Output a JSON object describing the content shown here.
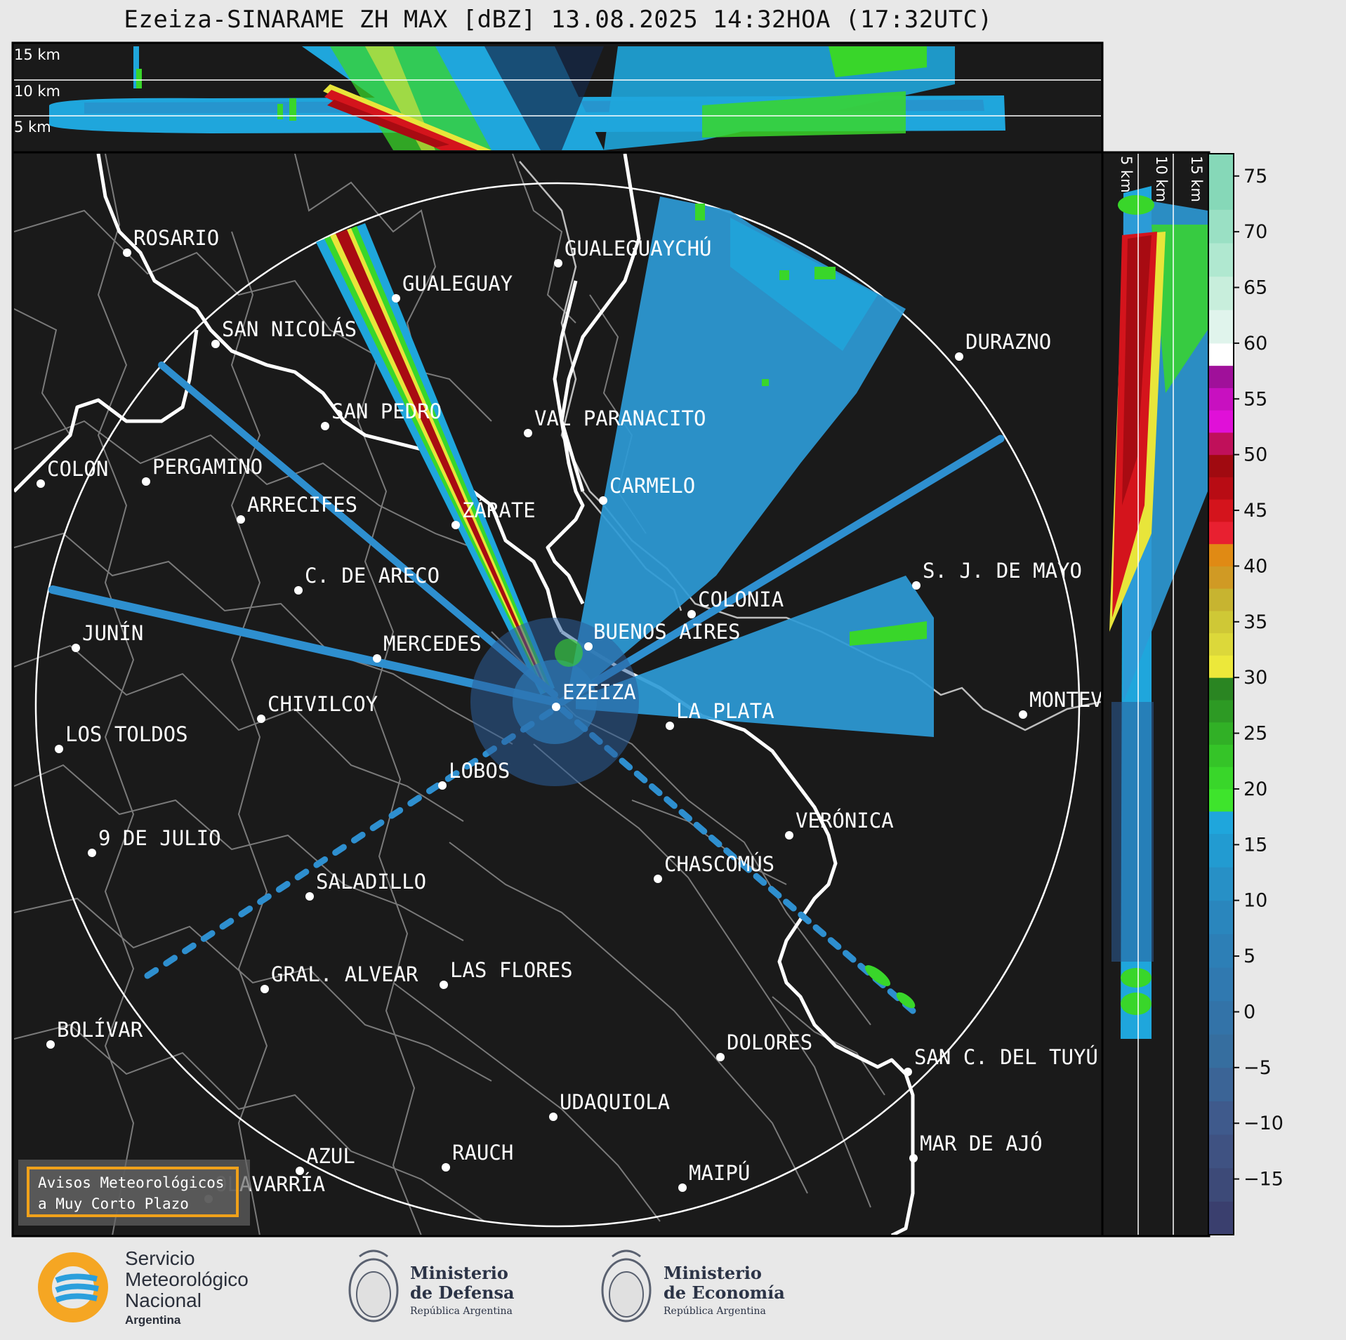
{
  "title": "Ezeiza-SINARAME ZH MAX [dBZ] 13.08.2025 14:32HOA (17:32UTC)",
  "top_panel": {
    "height_labels": [
      "15 km",
      "10 km",
      "5 km"
    ]
  },
  "side_panel": {
    "height_labels": [
      "5 km",
      "10 km",
      "15 km"
    ]
  },
  "colorbar": {
    "ticks": [
      "75",
      "70",
      "65",
      "60",
      "55",
      "50",
      "45",
      "40",
      "35",
      "30",
      "25",
      "20",
      "15",
      "10",
      "5",
      "0",
      "−5",
      "−10",
      "−15"
    ],
    "colors": {
      "cyan": "#1fa6dc",
      "blue": "#2e7bb8",
      "green": "#39d62a",
      "yellow": "#e8e53a",
      "orange": "#e07b12",
      "red": "#d4141c",
      "darkred": "#a80b12",
      "magenta": "#e010d8",
      "background": "#1a1a1a"
    }
  },
  "cities": [
    {
      "name": "ROSARIO"
    },
    {
      "name": "GUALEGUAYCHÚ"
    },
    {
      "name": "GUALEGUAY"
    },
    {
      "name": "SAN NICOLÁS"
    },
    {
      "name": "DURAZNO"
    },
    {
      "name": "SAN PEDRO"
    },
    {
      "name": "VAL PARANACITO"
    },
    {
      "name": "COLON"
    },
    {
      "name": "PERGAMINO"
    },
    {
      "name": "CARMELO"
    },
    {
      "name": "ARRECIFES"
    },
    {
      "name": "ZÁRATE"
    },
    {
      "name": "C. DE ARECO"
    },
    {
      "name": "S. J. DE MAYO"
    },
    {
      "name": "COLONIA"
    },
    {
      "name": "JUNÍN"
    },
    {
      "name": "BUENOS AIRES"
    },
    {
      "name": "MERCEDES"
    },
    {
      "name": "EZEIZA"
    },
    {
      "name": "MONTEV"
    },
    {
      "name": "CHIVILCOY"
    },
    {
      "name": "LA PLATA"
    },
    {
      "name": "LOS TOLDOS"
    },
    {
      "name": "LOBOS"
    },
    {
      "name": "VERÓNICA"
    },
    {
      "name": "9 DE JULIO"
    },
    {
      "name": "CHASCOMÚS"
    },
    {
      "name": "SALADILLO"
    },
    {
      "name": "GRAL. ALVEAR"
    },
    {
      "name": "LAS FLORES"
    },
    {
      "name": "BOLÍVAR"
    },
    {
      "name": "DOLORES"
    },
    {
      "name": "SAN C. DEL TUYÚ"
    },
    {
      "name": "UDAQUIOLA"
    },
    {
      "name": "AZUL"
    },
    {
      "name": "RAUCH"
    },
    {
      "name": "MAR DE AJÓ"
    },
    {
      "name": "MAIPÚ"
    },
    {
      "name": "OLAVARRÍA"
    }
  ],
  "warning_box": {
    "line1": "Avisos Meteorológicos",
    "line2": "a Muy Corto Plazo"
  },
  "footer": {
    "smn_line1": "Servicio",
    "smn_line2": "Meteorológico",
    "smn_line3": "Nacional",
    "smn_line4": "Argentina",
    "defensa_line1": "Ministerio",
    "defensa_line2": "de Defensa",
    "defensa_line3": "República Argentina",
    "economia_line1": "Ministerio",
    "economia_line2": "de Economía",
    "economia_line3": "República Argentina"
  }
}
